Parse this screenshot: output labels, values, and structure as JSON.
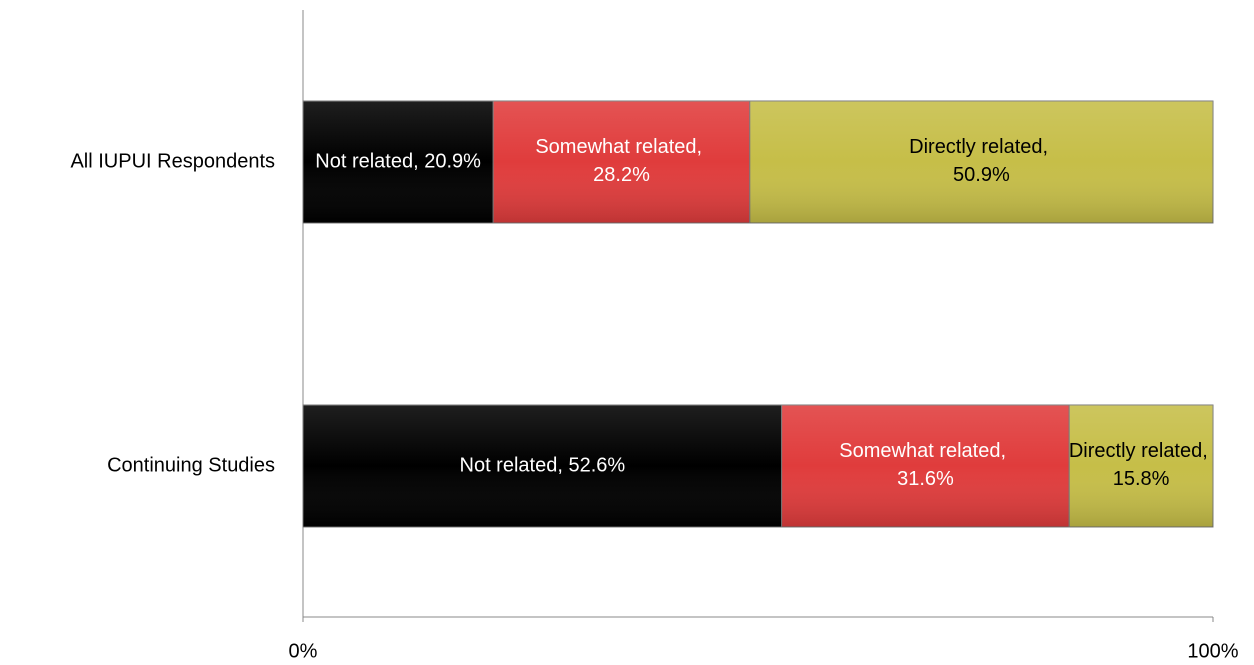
{
  "chart_data": {
    "type": "stacked-bar-horizontal",
    "categories": [
      "All IUPUI Respondents",
      "Continuing Studies"
    ],
    "series": [
      {
        "name": "Not related",
        "color": "#000000",
        "values": [
          20.9,
          52.6
        ],
        "value_labels": [
          "Not related, 20.9%",
          "Not related, 52.6%"
        ]
      },
      {
        "name": "Somewhat related",
        "color": "#e03c3c",
        "values": [
          28.2,
          31.6
        ],
        "value_labels": [
          "Somewhat related, 28.2%",
          "Somewhat related, 31.6%"
        ]
      },
      {
        "name": "Directly related",
        "color": "#c6be48",
        "values": [
          50.9,
          15.8
        ],
        "value_labels": [
          "Directly related, 50.9%",
          "Directly related, 15.8%"
        ]
      }
    ],
    "xlim": [
      0,
      100
    ],
    "xticks": [
      {
        "value": 0,
        "label": "0%"
      },
      {
        "value": 100,
        "label": "100%"
      }
    ]
  }
}
